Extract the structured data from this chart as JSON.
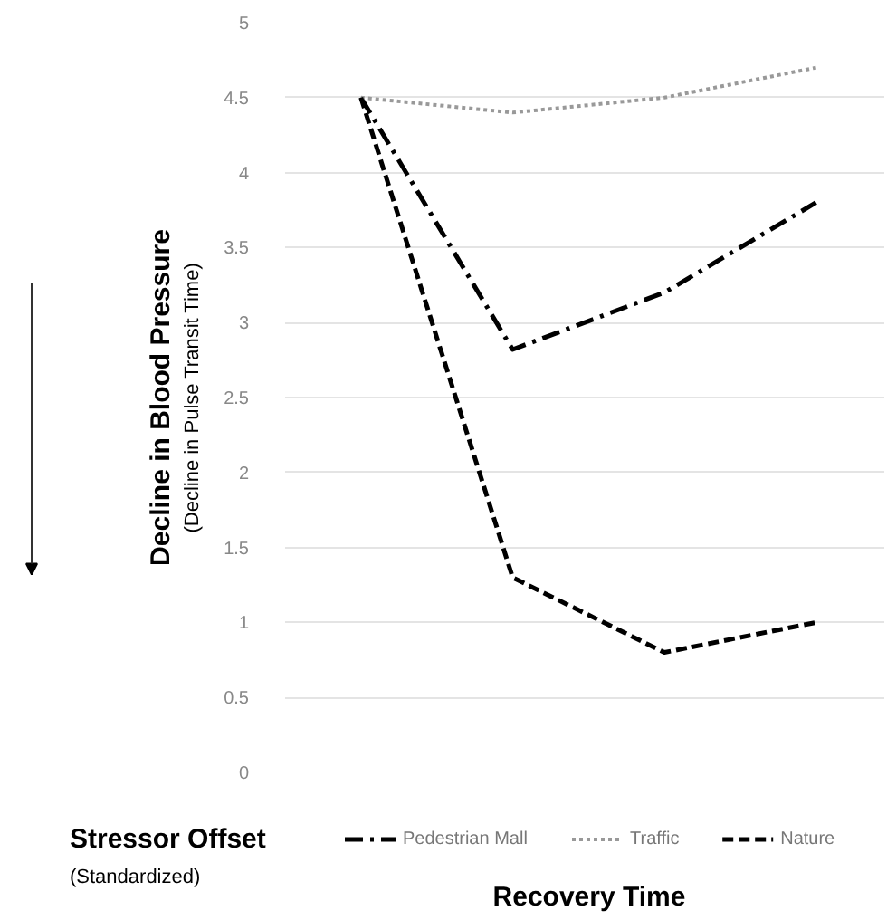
{
  "chart_data": {
    "type": "line",
    "categories": [
      null,
      null,
      null,
      null
    ],
    "series": [
      {
        "name": "Pedestrian Mall",
        "color": "#000000",
        "line_style": "dashdot",
        "values": [
          4.5,
          2.82,
          3.2,
          3.8
        ]
      },
      {
        "name": "Traffic",
        "color": "#999999",
        "line_style": "dotted",
        "values": [
          4.5,
          4.4,
          4.5,
          4.7
        ]
      },
      {
        "name": "Nature",
        "color": "#000000",
        "line_style": "dashed",
        "values": [
          4.5,
          1.3,
          0.8,
          1.0
        ]
      }
    ],
    "ylabel": "Decline in Blood Pressure",
    "xlabel": "Recovery Time",
    "annotations": [
      "(Decline in Pulse Transit Time)",
      "Stressor Offset",
      "(Standardized)"
    ],
    "ylim": [
      0,
      5
    ],
    "yticks": [
      0,
      0.5,
      1,
      1.5,
      2,
      2.5,
      3,
      3.5,
      4,
      4.5,
      5
    ],
    "grid": "y",
    "legend": "bottom",
    "marker": "none"
  }
}
